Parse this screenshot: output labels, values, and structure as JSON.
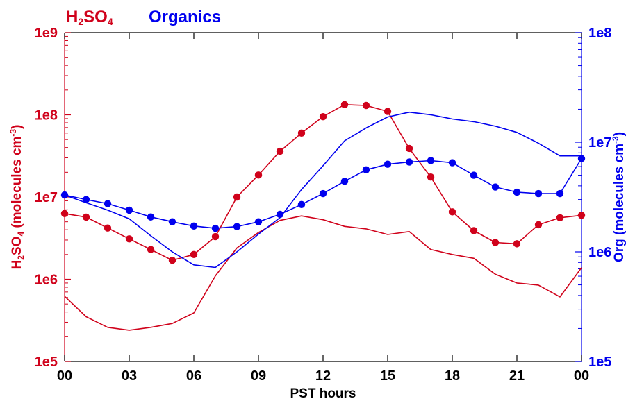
{
  "chart_data": {
    "type": "line",
    "legend": [
      {
        "label_main": "H",
        "sub1": "2",
        "mid": "SO",
        "sub2": "4",
        "color": "#d0021b"
      },
      {
        "label": "Organics",
        "color": "#0000ee"
      }
    ],
    "xlabel": "PST hours",
    "x_ticks": [
      "00",
      "03",
      "06",
      "09",
      "12",
      "15",
      "18",
      "21",
      "00"
    ],
    "xlim": [
      0,
      24
    ],
    "left_axis": {
      "label_parts": {
        "a": "H",
        "b": "2",
        "c": "SO",
        "d": "4",
        "e": " (molecules cm",
        "f": "-3",
        "g": ")"
      },
      "color": "#d0021b",
      "scale": "log",
      "ylim": [
        100000,
        1000000000
      ],
      "tick_labels": [
        "1e5",
        "1e6",
        "1e7",
        "1e8",
        "1e9"
      ]
    },
    "right_axis": {
      "label_parts": {
        "a": "Org (molecules cm",
        "b": "-3",
        "c": ")"
      },
      "color": "#0000ee",
      "scale": "log",
      "ylim": [
        100000,
        100000000
      ],
      "tick_labels": [
        "1e5",
        "1e6",
        "1e7",
        "1e8"
      ]
    },
    "series": [
      {
        "axis": "left",
        "color": "#d0021b",
        "marker": "circle",
        "x": [
          0,
          1,
          2,
          3,
          4,
          5,
          6,
          7,
          8,
          9,
          10,
          11,
          12,
          13,
          14,
          15,
          16,
          17,
          18,
          19,
          20,
          21,
          22,
          23,
          24
        ],
        "y": [
          6300000,
          5700000,
          4200000,
          3100000,
          2300000,
          1700000,
          2000000,
          3300000,
          10000000,
          18500000,
          36000000,
          60000000,
          95000000,
          133000000,
          130000000,
          110000000,
          39000000,
          17500000,
          6600000,
          3900000,
          2800000,
          2700000,
          4600000,
          5600000,
          6000000
        ]
      },
      {
        "axis": "left",
        "color": "#d0021b",
        "marker": "none",
        "x": [
          0,
          1,
          2,
          3,
          4,
          5,
          6,
          7,
          8,
          9,
          10,
          11,
          12,
          13,
          14,
          15,
          16,
          17,
          18,
          19,
          20,
          21,
          22,
          23,
          24
        ],
        "y": [
          620000,
          350000,
          260000,
          240000,
          260000,
          290000,
          390000,
          1100000,
          2400000,
          3700000,
          5200000,
          5900000,
          5300000,
          4400000,
          4100000,
          3500000,
          3800000,
          2300000,
          2000000,
          1800000,
          1150000,
          900000,
          850000,
          610000,
          1380000
        ]
      },
      {
        "axis": "right",
        "color": "#0000ee",
        "marker": "circle",
        "x": [
          0,
          1,
          2,
          3,
          4,
          5,
          6,
          7,
          8,
          9,
          10,
          11,
          12,
          13,
          14,
          15,
          16,
          17,
          18,
          19,
          20,
          21,
          22,
          23,
          24
        ],
        "y": [
          3300000,
          3000000,
          2750000,
          2400000,
          2080000,
          1880000,
          1720000,
          1640000,
          1700000,
          1880000,
          2200000,
          2700000,
          3400000,
          4400000,
          5600000,
          6300000,
          6600000,
          6800000,
          6500000,
          5000000,
          3900000,
          3500000,
          3400000,
          3400000,
          7100000
        ]
      },
      {
        "axis": "right",
        "color": "#0000ee",
        "marker": "none",
        "x": [
          0,
          1,
          2,
          3,
          4,
          5,
          6,
          7,
          8,
          9,
          10,
          11,
          12,
          13,
          14,
          15,
          16,
          17,
          18,
          19,
          20,
          21,
          22,
          23,
          24
        ],
        "y": [
          3300000,
          2800000,
          2400000,
          2000000,
          1400000,
          1000000,
          760000,
          720000,
          1000000,
          1450000,
          2050000,
          3700000,
          6100000,
          10300000,
          13500000,
          17000000,
          18800000,
          17800000,
          16300000,
          15400000,
          14000000,
          12300000,
          9800000,
          7500000,
          7500000
        ]
      }
    ]
  }
}
